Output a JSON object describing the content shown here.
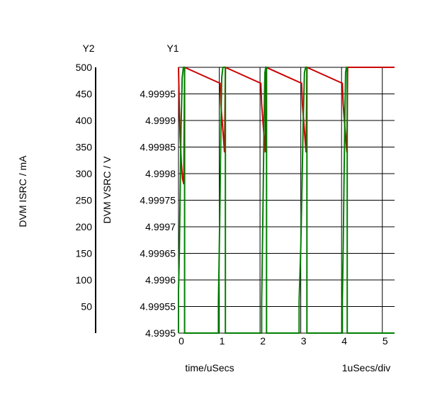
{
  "chart_data": {
    "type": "line",
    "y1_label": "Y1",
    "y2_label": "Y2",
    "y1_axis_title": "DVM VSRC / V",
    "y2_axis_title": "DVM ISRC / mA",
    "xlabel": "time/uSecs",
    "x_div_label": "1uSecs/div",
    "xlim": [
      0,
      5.3
    ],
    "y1lim": [
      4.9995,
      5.0
    ],
    "y2lim": [
      0,
      500
    ],
    "x_ticks": [
      "0",
      "1",
      "2",
      "3",
      "4",
      "5"
    ],
    "x_tick_values": [
      0,
      1,
      2,
      3,
      4,
      5
    ],
    "y1_ticks": [
      "4.9995",
      "4.99955",
      "4.9996",
      "4.99965",
      "4.9997",
      "4.99975",
      "4.9998",
      "4.99985",
      "4.9999",
      "4.99995"
    ],
    "y1_tick_values": [
      4.9995,
      4.99955,
      4.9996,
      4.99965,
      4.9997,
      4.99975,
      4.9998,
      4.99985,
      4.9999,
      4.99995
    ],
    "y2_ticks": [
      "50",
      "100",
      "150",
      "200",
      "250",
      "300",
      "350",
      "400",
      "450",
      "500"
    ],
    "y2_tick_values": [
      50,
      100,
      150,
      200,
      250,
      300,
      350,
      400,
      450,
      500
    ],
    "grid": true,
    "series": [
      {
        "axis": "y1",
        "color": "#cc0000",
        "x": [
          0,
          0.02,
          0.04,
          0.07,
          0.1,
          0.13,
          0.15,
          1.02,
          1.04,
          1.07,
          1.1,
          1.13,
          1.15,
          2.02,
          2.04,
          2.07,
          2.1,
          2.13,
          2.15,
          3.02,
          3.04,
          3.07,
          3.1,
          3.13,
          3.15,
          4.02,
          4.04,
          4.07,
          4.1,
          4.13,
          4.15,
          5.3
        ],
        "y": [
          5.0,
          4.99992,
          4.99987,
          4.99982,
          4.99979,
          4.99978,
          5.0,
          4.99997,
          4.99993,
          4.9999,
          4.99987,
          4.99984,
          5.0,
          4.99997,
          4.99993,
          4.9999,
          4.99987,
          4.99984,
          5.0,
          4.99997,
          4.99993,
          4.9999,
          4.99987,
          4.99984,
          5.0,
          4.99997,
          4.99993,
          4.9999,
          4.99987,
          4.99984,
          5.0,
          5.0
        ]
      },
      {
        "axis": "y2",
        "color": "#008000",
        "x": [
          0,
          0,
          0.02,
          0.04,
          0.06,
          0.09,
          0.12,
          0.15,
          0.15,
          0.98,
          0.98,
          1.0,
          1.02,
          1.04,
          1.06,
          1.09,
          1.12,
          1.15,
          1.15,
          2.04,
          2.04,
          2.06,
          2.08,
          2.1,
          2.12,
          2.14,
          2.16,
          2.16,
          2.96,
          2.96,
          3.0,
          3.03,
          3.06,
          3.09,
          3.12,
          3.15,
          3.15,
          4.02,
          4.02,
          4.04,
          4.06,
          4.08,
          4.1,
          4.12,
          4.14,
          4.14,
          5.3
        ],
        "y": [
          0,
          80,
          150,
          260,
          380,
          480,
          500,
          500,
          0,
          0,
          60,
          150,
          260,
          380,
          480,
          500,
          500,
          500,
          0,
          0,
          60,
          160,
          280,
          400,
          490,
          500,
          500,
          0,
          0,
          60,
          160,
          280,
          400,
          490,
          500,
          500,
          0,
          0,
          60,
          160,
          280,
          400,
          490,
          500,
          500,
          0,
          0
        ]
      }
    ]
  }
}
